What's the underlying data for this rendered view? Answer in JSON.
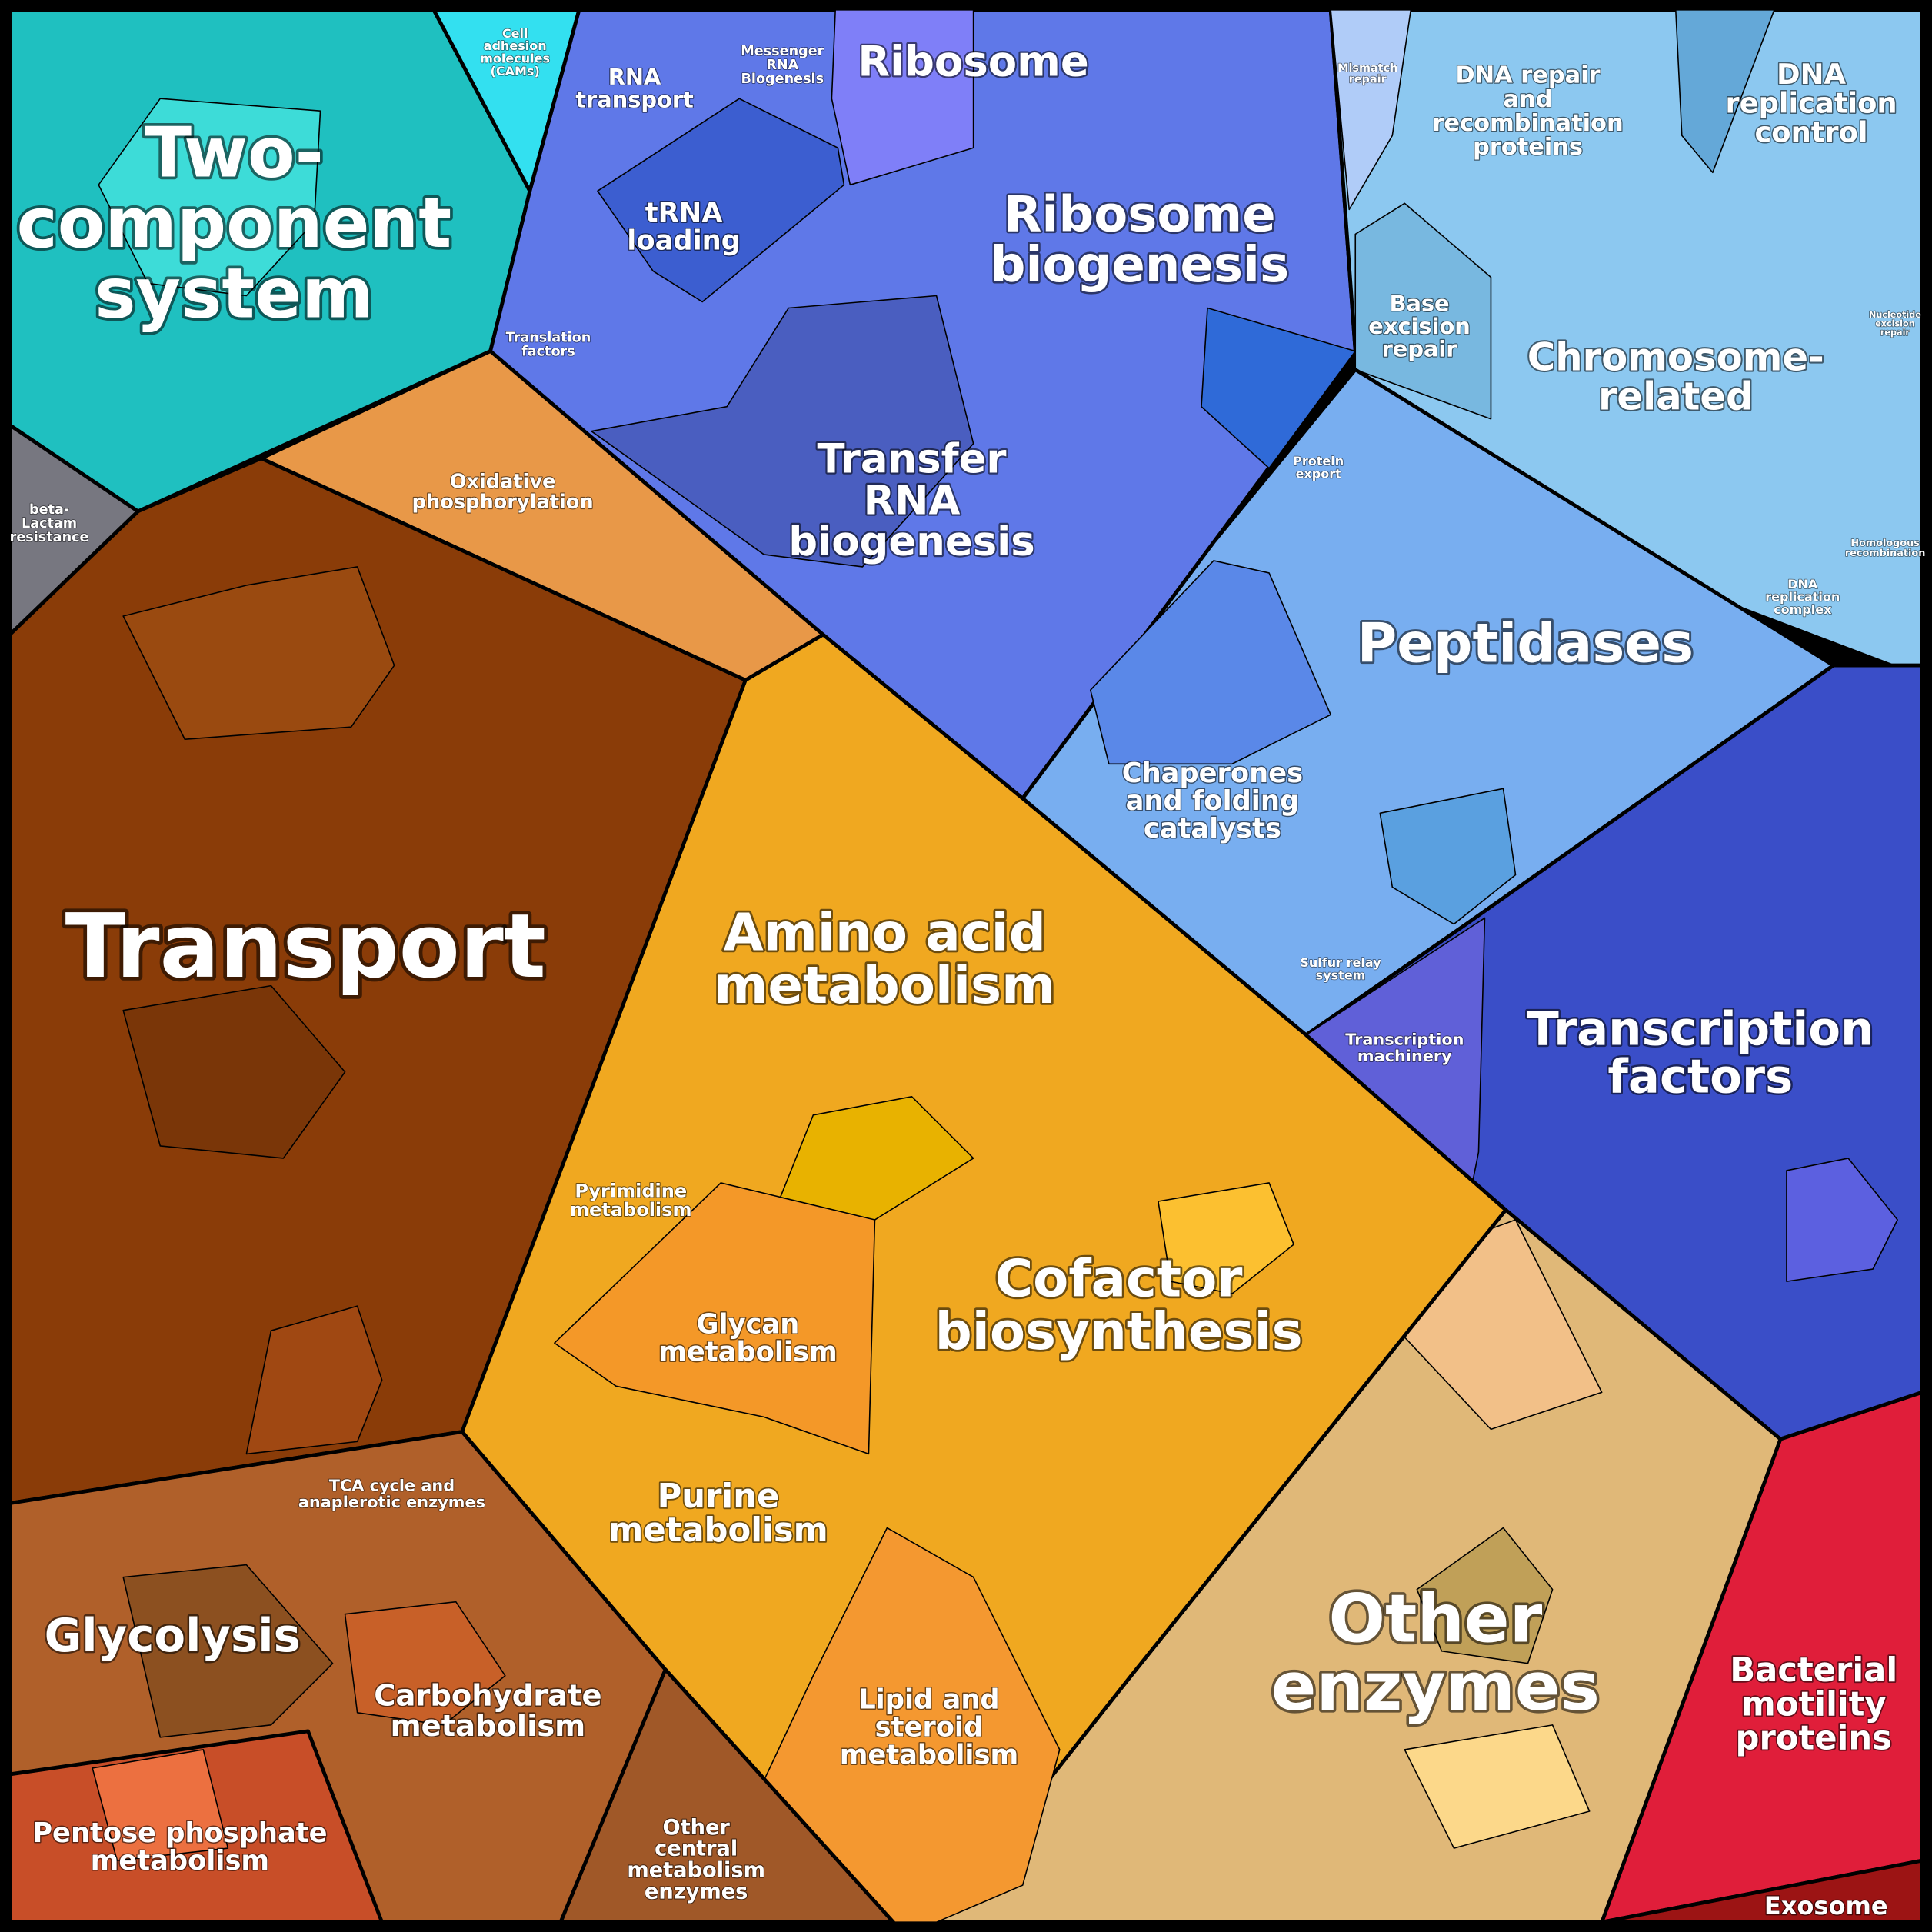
{
  "regions": [
    {
      "lines": [
        "Two-",
        "component",
        "system"
      ]
    },
    {
      "lines": [
        "Cell",
        "adhesion",
        "molecules",
        "(CAMs)"
      ]
    },
    {
      "lines": [
        "beta-",
        "Lactam",
        "resistance"
      ]
    },
    {
      "lines": [
        "RNA",
        "transport"
      ]
    },
    {
      "lines": [
        "Messenger",
        "RNA",
        "Biogenesis"
      ]
    },
    {
      "lines": [
        "Ribosome"
      ]
    },
    {
      "lines": [
        "tRNA",
        "loading"
      ]
    },
    {
      "lines": [
        "Translation",
        "factors"
      ]
    },
    {
      "lines": [
        "Ribosome",
        "biogenesis"
      ]
    },
    {
      "lines": [
        "Transfer",
        "RNA",
        "biogenesis"
      ]
    },
    {
      "lines": [
        "Mismatch",
        "repair"
      ]
    },
    {
      "lines": [
        "DNA repair",
        "and",
        "recombination",
        "proteins"
      ]
    },
    {
      "lines": [
        "DNA",
        "replication",
        "control"
      ]
    },
    {
      "lines": [
        "Base",
        "excision",
        "repair"
      ]
    },
    {
      "lines": [
        "Chromosome-",
        "related"
      ]
    },
    {
      "lines": [
        "Nucleotide",
        "excision",
        "repair"
      ]
    },
    {
      "lines": [
        "Homologous",
        "recombination"
      ]
    },
    {
      "lines": [
        "DNA",
        "replication",
        "complex"
      ]
    },
    {
      "lines": [
        "Protein",
        "export"
      ]
    },
    {
      "lines": [
        "Peptidases"
      ]
    },
    {
      "lines": [
        "Chaperones",
        "and folding",
        "catalysts"
      ]
    },
    {
      "lines": [
        "Sulfur relay",
        "system"
      ]
    },
    {
      "lines": [
        "Transcription",
        "machinery"
      ]
    },
    {
      "lines": [
        "Transcription",
        "factors"
      ]
    },
    {
      "lines": [
        "Bacterial",
        "motility",
        "proteins"
      ]
    },
    {
      "lines": [
        "Exosome"
      ]
    },
    {
      "lines": [
        "Other",
        "enzymes"
      ]
    },
    {
      "lines": [
        "Amino acid",
        "metabolism"
      ]
    },
    {
      "lines": [
        "Pyrimidine",
        "metabolism"
      ]
    },
    {
      "lines": [
        "Glycan",
        "metabolism"
      ]
    },
    {
      "lines": [
        "Cofactor",
        "biosynthesis"
      ]
    },
    {
      "lines": [
        "Purine",
        "metabolism"
      ]
    },
    {
      "lines": [
        "Lipid and",
        "steroid",
        "metabolism"
      ]
    },
    {
      "lines": [
        "Oxidative",
        "phosphorylation"
      ]
    },
    {
      "lines": [
        "Transport"
      ]
    },
    {
      "lines": [
        "TCA cycle and",
        "anaplerotic enzymes"
      ]
    },
    {
      "lines": [
        "Glycolysis"
      ]
    },
    {
      "lines": [
        "Carbohydrate",
        "metabolism"
      ]
    },
    {
      "lines": [
        "Pentose phosphate",
        "metabolism"
      ]
    },
    {
      "lines": [
        "Other",
        "central",
        "metabolism",
        "enzymes"
      ]
    }
  ]
}
